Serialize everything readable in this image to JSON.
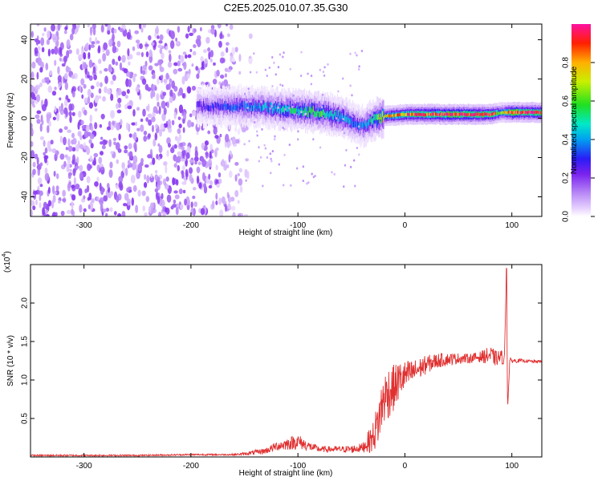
{
  "title": "C2E5.2025.010.07.35.G30",
  "chart_data": [
    {
      "type": "heatmap",
      "xlabel": "Height of straight line (km)",
      "ylabel": "Frequency (Hz)",
      "xlim": [
        -350,
        128
      ],
      "ylim": [
        -50,
        48
      ],
      "xticks": [
        -300,
        -200,
        -100,
        0,
        100
      ],
      "yticks": [
        -40,
        -20,
        0,
        20,
        40
      ],
      "colorbar": {
        "label": "Normalized spectral amplitude",
        "range": [
          0,
          1
        ],
        "ticks": [
          "0.0",
          "0.2",
          "0.4",
          "0.6",
          "0.8"
        ],
        "colormap": "rainbow (white-violet-blue-cyan-green-yellow-red-magenta)"
      },
      "features": [
        {
          "description": "noise speckle",
          "x_range": [
            -350,
            -150
          ],
          "y_range": [
            -50,
            48
          ],
          "amplitude": 0.1
        },
        {
          "description": "signal band",
          "x": [
            -190,
            -150,
            -120,
            -100,
            -80,
            -60,
            -50,
            -40,
            -30,
            -20,
            0,
            20,
            50,
            80,
            90,
            100,
            128
          ],
          "center_hz": [
            6,
            6,
            5,
            4,
            3,
            1,
            -2,
            -4,
            -1,
            1,
            2,
            2,
            2,
            2,
            3,
            3,
            3
          ],
          "peak_amplitude": [
            0.25,
            0.35,
            0.45,
            0.5,
            0.55,
            0.45,
            0.4,
            0.35,
            0.5,
            0.7,
            0.85,
            0.95,
            0.95,
            0.95,
            0.6,
            0.95,
            0.9
          ]
        }
      ]
    },
    {
      "type": "line",
      "xlabel": "Height of straight line (km)",
      "ylabel": "SNR (10 * v/v)",
      "scale_label": "(x10",
      "scale_exponent": "4",
      "xlim": [
        -350,
        128
      ],
      "ylim": [
        0,
        2.5
      ],
      "xticks": [
        -300,
        -200,
        -100,
        0,
        100
      ],
      "yticks": [
        "0.5",
        "1.0",
        "1.5",
        "2.0"
      ],
      "series": [
        {
          "color": "#e03030",
          "x": [
            -350,
            -300,
            -250,
            -200,
            -160,
            -150,
            -130,
            -120,
            -100,
            -90,
            -80,
            -60,
            -50,
            -40,
            -30,
            -25,
            -20,
            -15,
            -10,
            -5,
            0,
            10,
            20,
            30,
            40,
            50,
            60,
            70,
            80,
            85,
            90,
            93,
            95,
            96,
            98,
            100,
            110,
            120,
            128
          ],
          "y": [
            0.02,
            0.02,
            0.02,
            0.03,
            0.03,
            0.04,
            0.08,
            0.14,
            0.2,
            0.14,
            0.1,
            0.1,
            0.1,
            0.12,
            0.25,
            0.45,
            0.75,
            0.85,
            0.9,
            1.0,
            1.05,
            1.12,
            1.2,
            1.25,
            1.27,
            1.28,
            1.28,
            1.3,
            1.32,
            1.28,
            1.3,
            1.25,
            2.45,
            0.6,
            1.25,
            1.25,
            1.25,
            1.24,
            1.24
          ],
          "noise_amplitude": [
            0.01,
            0.01,
            0.01,
            0.01,
            0.01,
            0.02,
            0.04,
            0.06,
            0.1,
            0.06,
            0.04,
            0.04,
            0.05,
            0.06,
            0.2,
            0.3,
            0.35,
            0.35,
            0.3,
            0.25,
            0.2,
            0.15,
            0.12,
            0.1,
            0.08,
            0.07,
            0.06,
            0.07,
            0.12,
            0.1,
            0.1,
            0.05,
            0,
            0,
            0.04,
            0.03,
            0.02,
            0.02,
            0.02
          ]
        }
      ]
    }
  ]
}
